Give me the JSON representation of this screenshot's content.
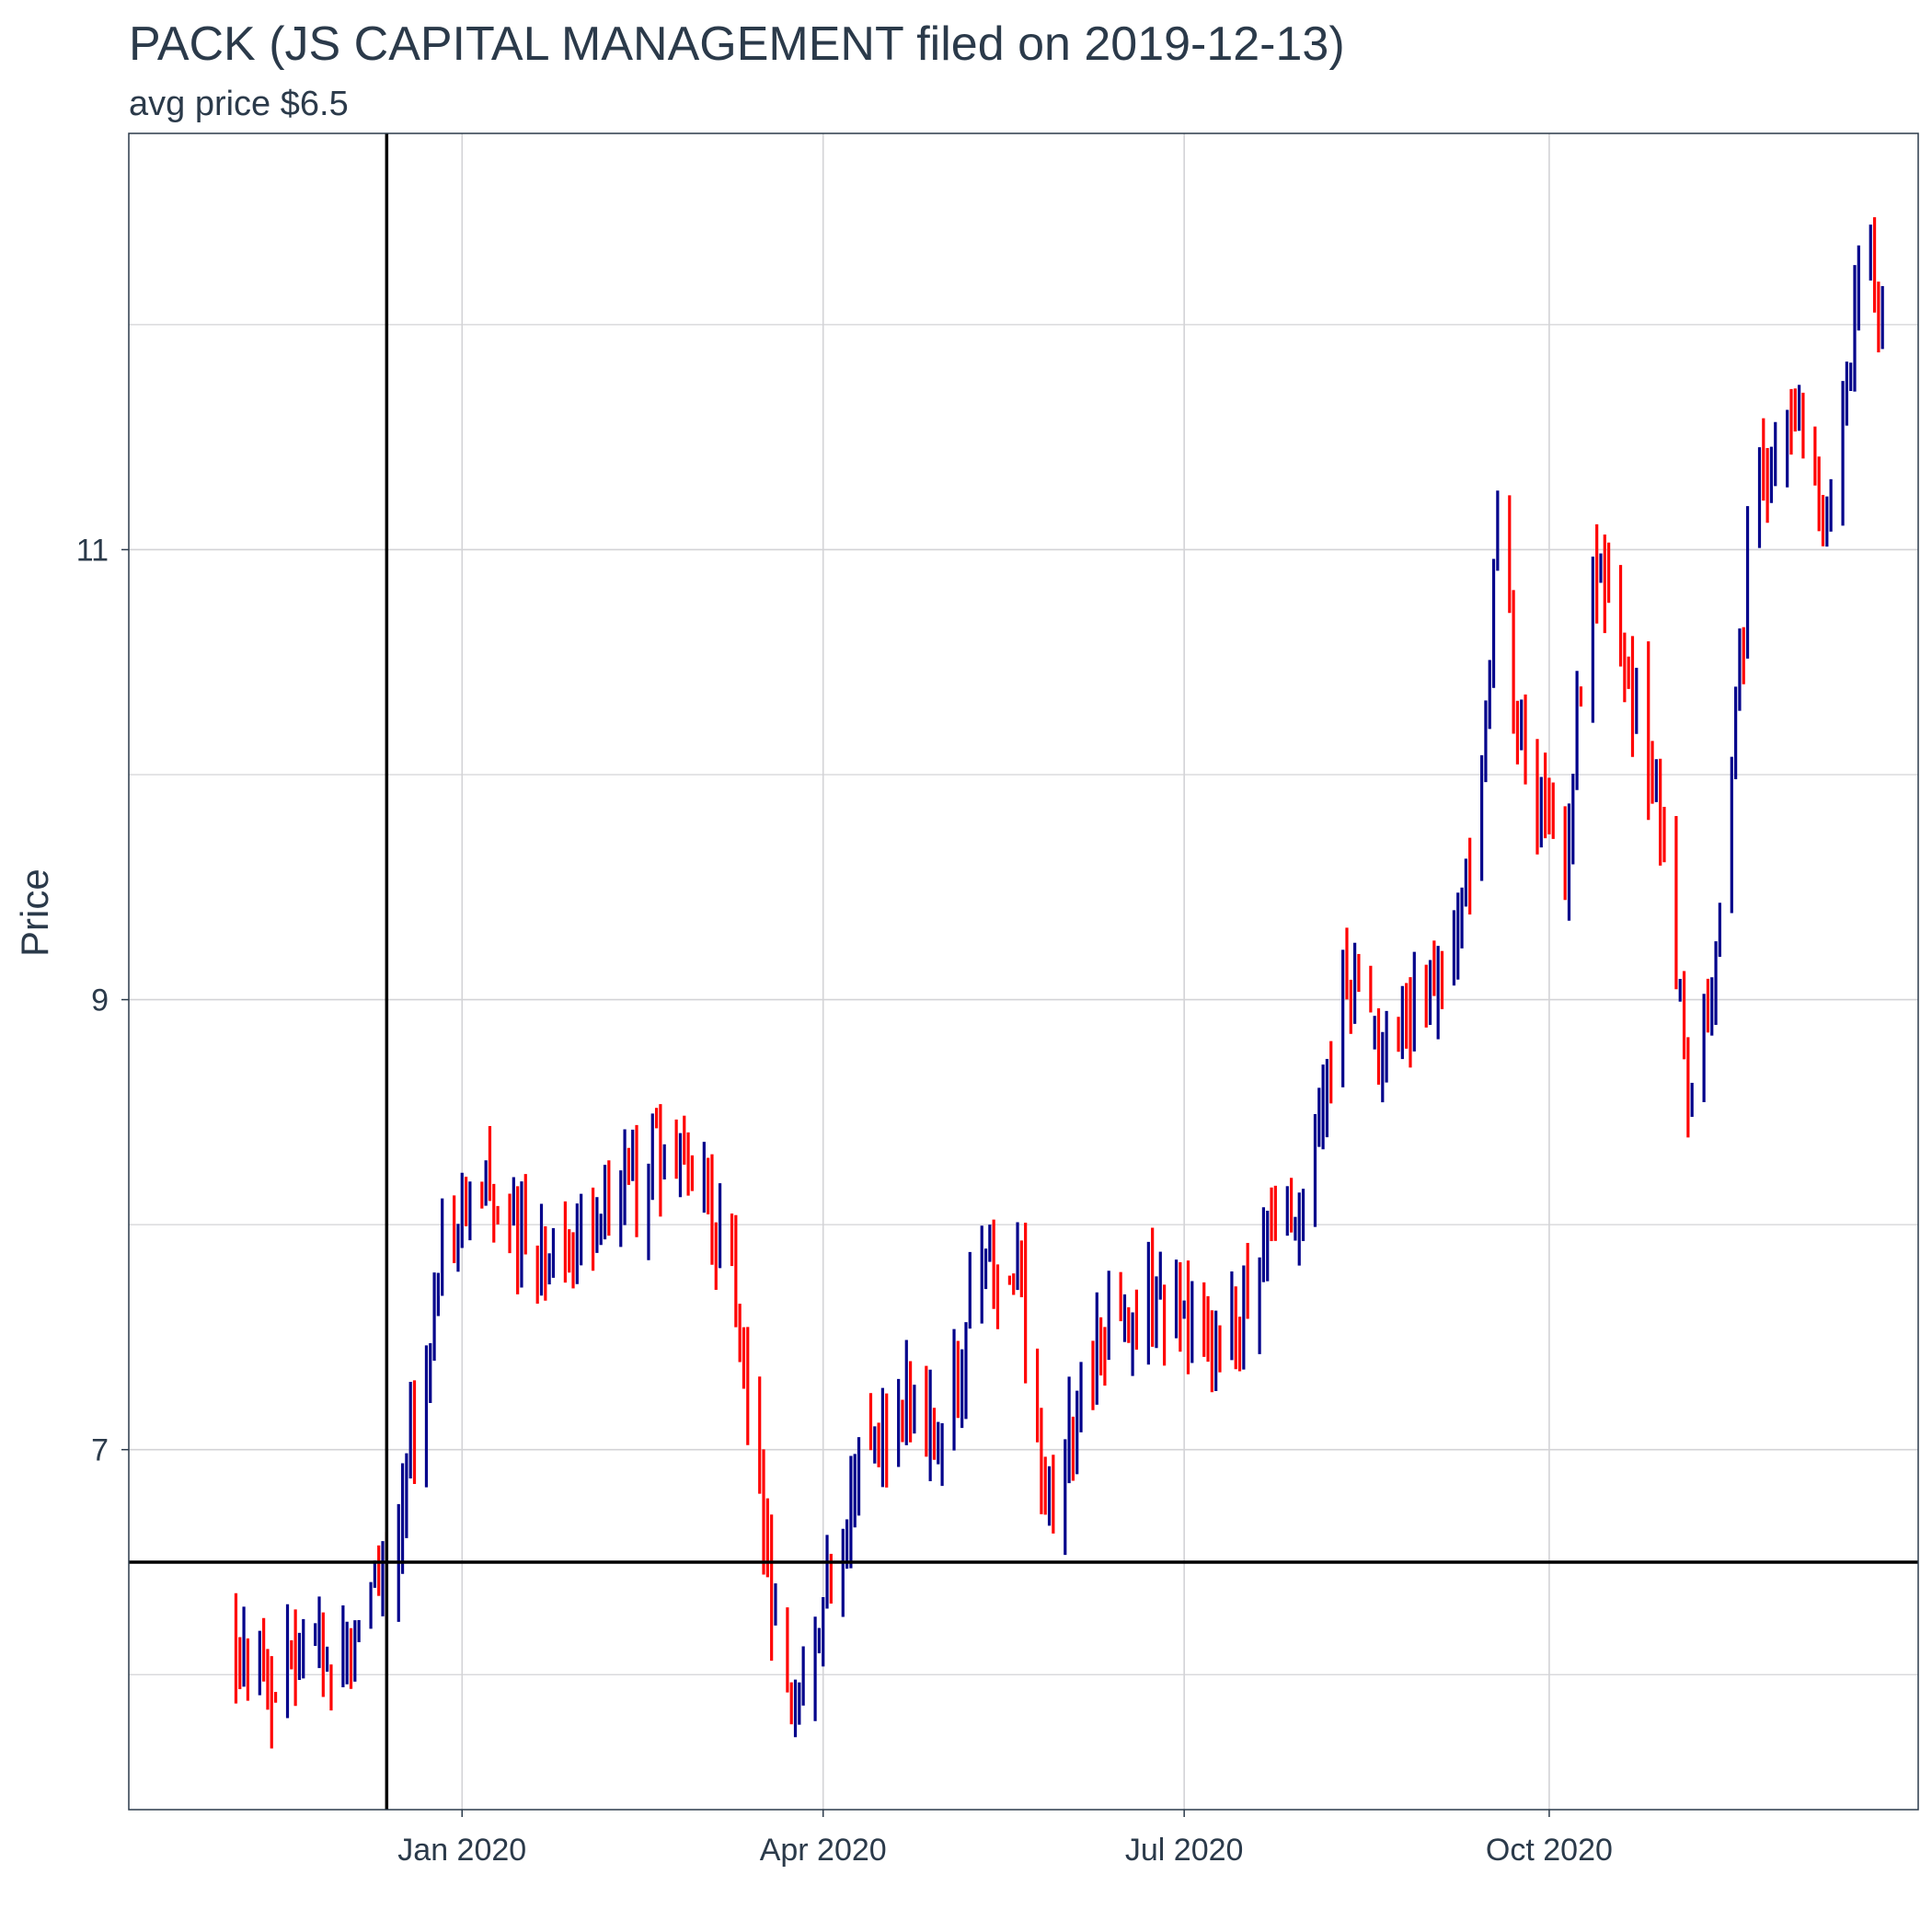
{
  "chart_data": {
    "type": "ohlc",
    "title": "PACK (JS CAPITAL MANAGEMENT filed on 2019-12-13)",
    "subtitle": "avg price $6.5",
    "xlabel": "",
    "ylabel": "Price",
    "ylim": [
      5.4,
      12.85
    ],
    "xlim": [
      "2019-10-09",
      "2021-01-02"
    ],
    "grid": true,
    "legend": "none",
    "x_ticks": [
      {
        "date": "2020-01-01",
        "label": "Jan 2020"
      },
      {
        "date": "2020-04-01",
        "label": "Apr 2020"
      },
      {
        "date": "2020-07-01",
        "label": "Jul 2020"
      },
      {
        "date": "2020-10-01",
        "label": "Oct 2020"
      }
    ],
    "y_ticks": [
      7,
      9,
      11
    ],
    "y_minor_gridlines": [
      6,
      8,
      10,
      12
    ],
    "reference_lines": {
      "filing_date": "2019-12-13",
      "avg_price": 6.5
    },
    "colors": {
      "up": "#00008b",
      "down": "#ff0000",
      "reference": "#000000",
      "grid": "#d3d3d6",
      "text": "#2b3a4a",
      "panel_border": "#2b3a4a"
    },
    "segments": [
      {
        "date": "2019-11-05",
        "price": 6.15,
        "trend": "down"
      },
      {
        "date": "2019-11-15",
        "price": 5.98,
        "trend": "down"
      },
      {
        "date": "2019-11-25",
        "price": 6.15,
        "trend": "up"
      },
      {
        "date": "2019-12-05",
        "price": 6.05,
        "trend": "down"
      },
      {
        "date": "2019-12-13",
        "price": 6.5,
        "trend": "up"
      },
      {
        "date": "2019-12-20",
        "price": 7.1,
        "trend": "down"
      },
      {
        "date": "2019-12-27",
        "price": 7.9,
        "trend": "up"
      },
      {
        "date": "2020-01-06",
        "price": 8.1,
        "trend": "up"
      },
      {
        "date": "2020-01-20",
        "price": 7.9,
        "trend": "down"
      },
      {
        "date": "2020-02-01",
        "price": 7.85,
        "trend": "up"
      },
      {
        "date": "2020-02-12",
        "price": 8.15,
        "trend": "up"
      },
      {
        "date": "2020-02-20",
        "price": 8.35,
        "trend": "up"
      },
      {
        "date": "2020-03-01",
        "price": 8.25,
        "trend": "up"
      },
      {
        "date": "2020-03-10",
        "price": 7.7,
        "trend": "down"
      },
      {
        "date": "2020-03-18",
        "price": 6.4,
        "trend": "down"
      },
      {
        "date": "2020-03-23",
        "price": 5.8,
        "trend": "down"
      },
      {
        "date": "2020-04-01",
        "price": 6.25,
        "trend": "up"
      },
      {
        "date": "2020-04-10",
        "price": 6.9,
        "trend": "down"
      },
      {
        "date": "2020-04-20",
        "price": 7.2,
        "trend": "down"
      },
      {
        "date": "2020-05-01",
        "price": 7.0,
        "trend": "down"
      },
      {
        "date": "2020-05-10",
        "price": 7.8,
        "trend": "up"
      },
      {
        "date": "2020-05-20",
        "price": 7.8,
        "trend": "down"
      },
      {
        "date": "2020-05-28",
        "price": 6.7,
        "trend": "down"
      },
      {
        "date": "2020-06-10",
        "price": 7.5,
        "trend": "up"
      },
      {
        "date": "2020-06-20",
        "price": 7.7,
        "trend": "up"
      },
      {
        "date": "2020-06-30",
        "price": 7.6,
        "trend": "down"
      },
      {
        "date": "2020-07-10",
        "price": 7.3,
        "trend": "down"
      },
      {
        "date": "2020-07-20",
        "price": 7.85,
        "trend": "up"
      },
      {
        "date": "2020-08-01",
        "price": 8.2,
        "trend": "up"
      },
      {
        "date": "2020-08-10",
        "price": 9.1,
        "trend": "up"
      },
      {
        "date": "2020-08-20",
        "price": 8.8,
        "trend": "down"
      },
      {
        "date": "2020-09-01",
        "price": 9.0,
        "trend": "up"
      },
      {
        "date": "2020-09-12",
        "price": 9.6,
        "trend": "up"
      },
      {
        "date": "2020-09-18",
        "price": 11.2,
        "trend": "up"
      },
      {
        "date": "2020-09-25",
        "price": 10.0,
        "trend": "down"
      },
      {
        "date": "2020-10-05",
        "price": 9.6,
        "trend": "up"
      },
      {
        "date": "2020-10-12",
        "price": 11.0,
        "trend": "up"
      },
      {
        "date": "2020-10-20",
        "price": 10.5,
        "trend": "down"
      },
      {
        "date": "2020-10-28",
        "price": 9.9,
        "trend": "down"
      },
      {
        "date": "2020-11-05",
        "price": 8.7,
        "trend": "down"
      },
      {
        "date": "2020-11-10",
        "price": 9.0,
        "trend": "up"
      },
      {
        "date": "2020-11-15",
        "price": 9.9,
        "trend": "up"
      },
      {
        "date": "2020-11-22",
        "price": 11.3,
        "trend": "up"
      },
      {
        "date": "2020-12-01",
        "price": 11.7,
        "trend": "up"
      },
      {
        "date": "2020-12-10",
        "price": 11.1,
        "trend": "down"
      },
      {
        "date": "2020-12-20",
        "price": 12.5,
        "trend": "up"
      },
      {
        "date": "2020-12-24",
        "price": 12.0,
        "trend": "down"
      }
    ]
  }
}
